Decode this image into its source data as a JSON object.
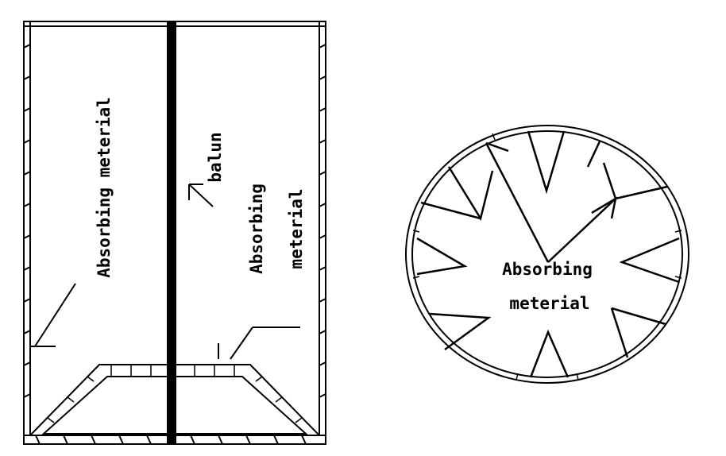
{
  "left_diagram": {
    "label_absorbing_left": "Absorbing meterial",
    "label_balun": "balun",
    "label_absorbing_right_line1": "Absorbing",
    "label_absorbing_right_line2": "meterial"
  },
  "right_diagram": {
    "label_line1": "Absorbing",
    "label_line2": "meterial"
  },
  "colors": {
    "stroke": "#000000",
    "background": "#ffffff"
  }
}
